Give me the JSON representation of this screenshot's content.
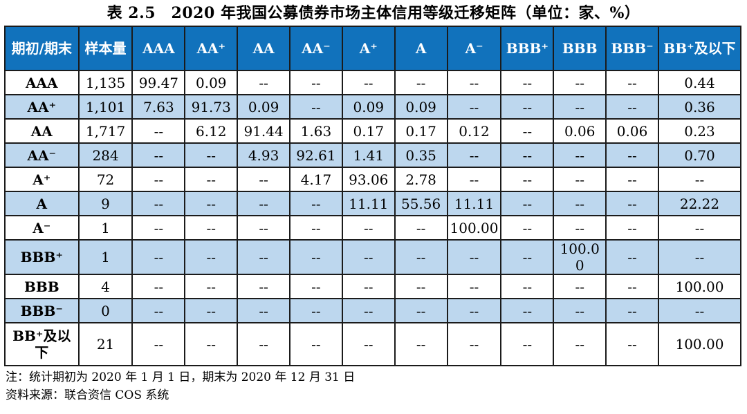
{
  "title": "表 2.5　2020 年我国公募债券市场主体信用等级迁移矩阵（单位：家、%）",
  "table": {
    "columns": [
      "期初/期末",
      "样本量",
      "AAA",
      "AA⁺",
      "AA",
      "AA⁻",
      "A⁺",
      "A",
      "A⁻",
      "BBB⁺",
      "BBB",
      "BBB⁻",
      "BB⁺及以下"
    ],
    "rows": [
      {
        "label": "AAA",
        "sample": "1,135",
        "values": [
          "99.47",
          "0.09",
          "--",
          "--",
          "--",
          "--",
          "--",
          "--",
          "--",
          "--",
          "0.44"
        ]
      },
      {
        "label": "AA⁺",
        "sample": "1,101",
        "values": [
          "7.63",
          "91.73",
          "0.09",
          "--",
          "0.09",
          "0.09",
          "--",
          "--",
          "--",
          "--",
          "0.36"
        ]
      },
      {
        "label": "AA",
        "sample": "1,717",
        "values": [
          "--",
          "6.12",
          "91.44",
          "1.63",
          "0.17",
          "0.17",
          "0.12",
          "--",
          "0.06",
          "0.06",
          "0.23"
        ]
      },
      {
        "label": "AA⁻",
        "sample": "284",
        "values": [
          "--",
          "--",
          "4.93",
          "92.61",
          "1.41",
          "0.35",
          "--",
          "--",
          "--",
          "--",
          "0.70"
        ]
      },
      {
        "label": "A⁺",
        "sample": "72",
        "values": [
          "--",
          "--",
          "--",
          "4.17",
          "93.06",
          "2.78",
          "--",
          "--",
          "--",
          "--",
          "--"
        ]
      },
      {
        "label": "A",
        "sample": "9",
        "values": [
          "--",
          "--",
          "--",
          "--",
          "11.11",
          "55.56",
          "11.11",
          "--",
          "--",
          "--",
          "22.22"
        ]
      },
      {
        "label": "A⁻",
        "sample": "1",
        "values": [
          "--",
          "--",
          "--",
          "--",
          "--",
          "--",
          "100.00",
          "--",
          "--",
          "--",
          "--"
        ]
      },
      {
        "label": "BBB⁺",
        "sample": "1",
        "values": [
          "--",
          "--",
          "--",
          "--",
          "--",
          "--",
          "--",
          "--",
          "100.00",
          "--",
          "--"
        ]
      },
      {
        "label": "BBB",
        "sample": "4",
        "values": [
          "--",
          "--",
          "--",
          "--",
          "--",
          "--",
          "--",
          "--",
          "--",
          "--",
          "100.00"
        ]
      },
      {
        "label": "BBB⁻",
        "sample": "0",
        "values": [
          "--",
          "--",
          "--",
          "--",
          "--",
          "--",
          "--",
          "--",
          "--",
          "--",
          "--"
        ]
      },
      {
        "label": "BB⁺及以下",
        "sample": "21",
        "values": [
          "--",
          "--",
          "--",
          "--",
          "--",
          "--",
          "--",
          "--",
          "--",
          "--",
          "100.00"
        ]
      }
    ],
    "stripe_rows": [
      1,
      3,
      5,
      7,
      9
    ],
    "tall_rows": [
      10
    ]
  },
  "notes": {
    "period": "注：统计期初为 2020 年 1 月 1 日，期末为 2020 年 12 月 31 日",
    "source": "资料来源：联合资信 COS 系统"
  },
  "colors": {
    "header_bg": "#1172BC",
    "header_text": "#FFFFFF",
    "stripe_bg": "#BDD7EE",
    "border": "#1B1B1B",
    "body_text": "#000000"
  }
}
